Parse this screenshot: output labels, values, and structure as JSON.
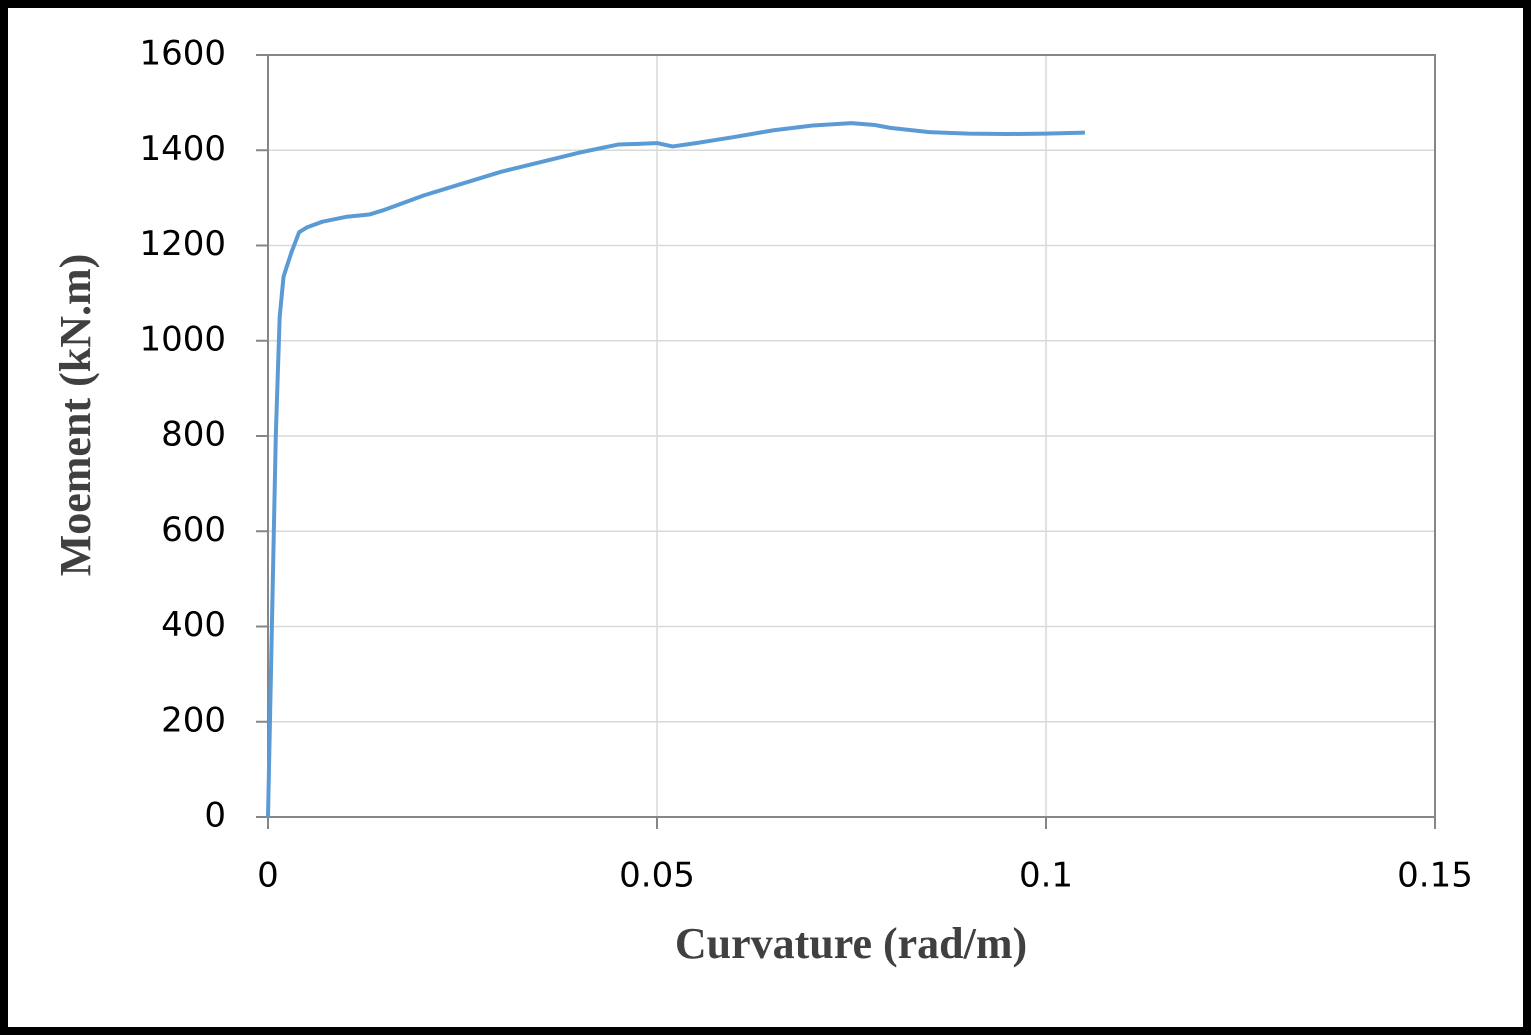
{
  "chart_data": {
    "type": "line",
    "x_label": "Curvature (rad/m)",
    "y_label": "Moement (kN.m)",
    "x": [
      0,
      0.0005,
      0.001,
      0.0015,
      0.002,
      0.003,
      0.004,
      0.005,
      0.007,
      0.01,
      0.013,
      0.015,
      0.02,
      0.025,
      0.03,
      0.035,
      0.04,
      0.045,
      0.047,
      0.05,
      0.052,
      0.055,
      0.06,
      0.065,
      0.07,
      0.075,
      0.078,
      0.08,
      0.085,
      0.09,
      0.095,
      0.1,
      0.105
    ],
    "values": [
      0,
      400,
      800,
      1050,
      1135,
      1185,
      1228,
      1238,
      1250,
      1260,
      1265,
      1275,
      1305,
      1330,
      1355,
      1375,
      1395,
      1412,
      1413,
      1415,
      1408,
      1415,
      1428,
      1442,
      1452,
      1457,
      1453,
      1447,
      1438,
      1435,
      1434,
      1435,
      1437
    ],
    "color": "#5b9bd5",
    "xlim": [
      0,
      0.15
    ],
    "xticks": [
      0,
      0.05,
      0.1,
      0.15
    ],
    "ylim": [
      0,
      1600
    ],
    "yticks": [
      0,
      200,
      400,
      600,
      800,
      1000,
      1200,
      1400,
      1600
    ],
    "grid": true
  }
}
